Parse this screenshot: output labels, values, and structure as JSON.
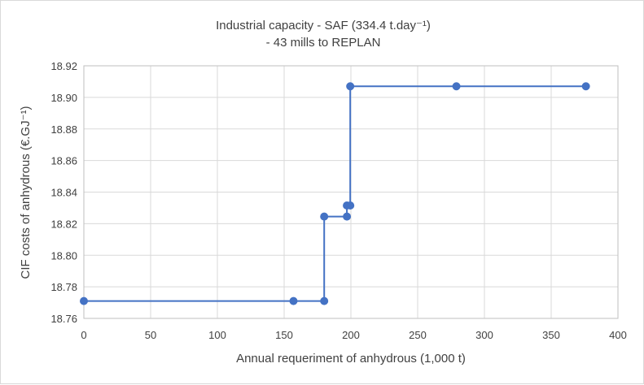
{
  "chart_data": {
    "type": "line",
    "title_lines": [
      "Industrial capacity - SAF (334.4 t.day⁻¹)",
      "- 43 mills to REPLAN"
    ],
    "xlabel": "Annual requeriment of anhydrous (1,000 t)",
    "ylabel": "CIF costs of anhydrous (€.GJ⁻¹)",
    "xlim": [
      0,
      400
    ],
    "ylim": [
      18.76,
      18.92
    ],
    "x_ticks": [
      "0",
      "50",
      "100",
      "150",
      "200",
      "250",
      "300",
      "350",
      "400"
    ],
    "y_ticks": [
      "18.76",
      "18.78",
      "18.80",
      "18.82",
      "18.84",
      "18.86",
      "18.88",
      "18.90",
      "18.92"
    ],
    "grid": true,
    "legend": "none",
    "line_color": "#4472c4",
    "series": [
      {
        "points": [
          {
            "x": 0,
            "y": 18.771
          },
          {
            "x": 157,
            "y": 18.771
          },
          {
            "x": 180,
            "y": 18.771
          },
          {
            "x": 180,
            "y": 18.8245
          },
          {
            "x": 197,
            "y": 18.8245
          },
          {
            "x": 197,
            "y": 18.8315
          },
          {
            "x": 199.5,
            "y": 18.8315
          },
          {
            "x": 199.5,
            "y": 18.907
          },
          {
            "x": 279,
            "y": 18.907
          },
          {
            "x": 376,
            "y": 18.907
          }
        ],
        "marked_points": [
          {
            "x": 0,
            "y": 18.771
          },
          {
            "x": 157,
            "y": 18.771
          },
          {
            "x": 180,
            "y": 18.771
          },
          {
            "x": 180,
            "y": 18.8245
          },
          {
            "x": 197,
            "y": 18.8245
          },
          {
            "x": 197,
            "y": 18.8315
          },
          {
            "x": 199.5,
            "y": 18.8315
          },
          {
            "x": 199.5,
            "y": 18.907
          },
          {
            "x": 279,
            "y": 18.907
          },
          {
            "x": 376,
            "y": 18.907
          }
        ]
      }
    ]
  }
}
